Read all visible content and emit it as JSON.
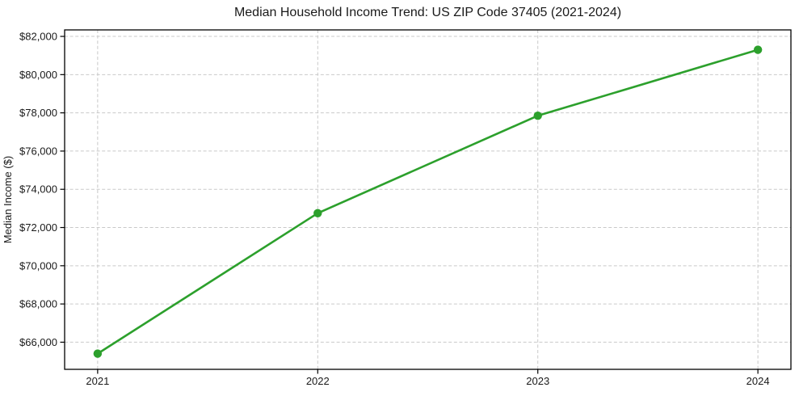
{
  "chart_data": {
    "type": "line",
    "title": "Median Household Income Trend: US ZIP Code 37405 (2021-2024)",
    "xlabel": "",
    "ylabel": "Median Income ($)",
    "x": [
      2021,
      2022,
      2023,
      2024
    ],
    "xtick_labels": [
      "2021",
      "2022",
      "2023",
      "2024"
    ],
    "values": [
      65400,
      72750,
      77850,
      81300
    ],
    "yticks": [
      66000,
      68000,
      70000,
      72000,
      74000,
      76000,
      78000,
      80000,
      82000
    ],
    "ytick_labels": [
      "$66,000",
      "$68,000",
      "$70,000",
      "$72,000",
      "$74,000",
      "$76,000",
      "$78,000",
      "$80,000",
      "$82,000"
    ],
    "xlim": [
      2020.85,
      2024.15
    ],
    "ylim": [
      64580,
      82340
    ],
    "grid": {
      "show": true,
      "style": "dashed",
      "axes": "both"
    },
    "legend_position": "none",
    "line_color": "#2ca02c",
    "marker": "circle",
    "marker_color": "#2ca02c",
    "background_color": "#ffffff",
    "grid_color": "#c9c9c9",
    "axis_color": "#000000",
    "text_color": "#1a1a1a"
  }
}
